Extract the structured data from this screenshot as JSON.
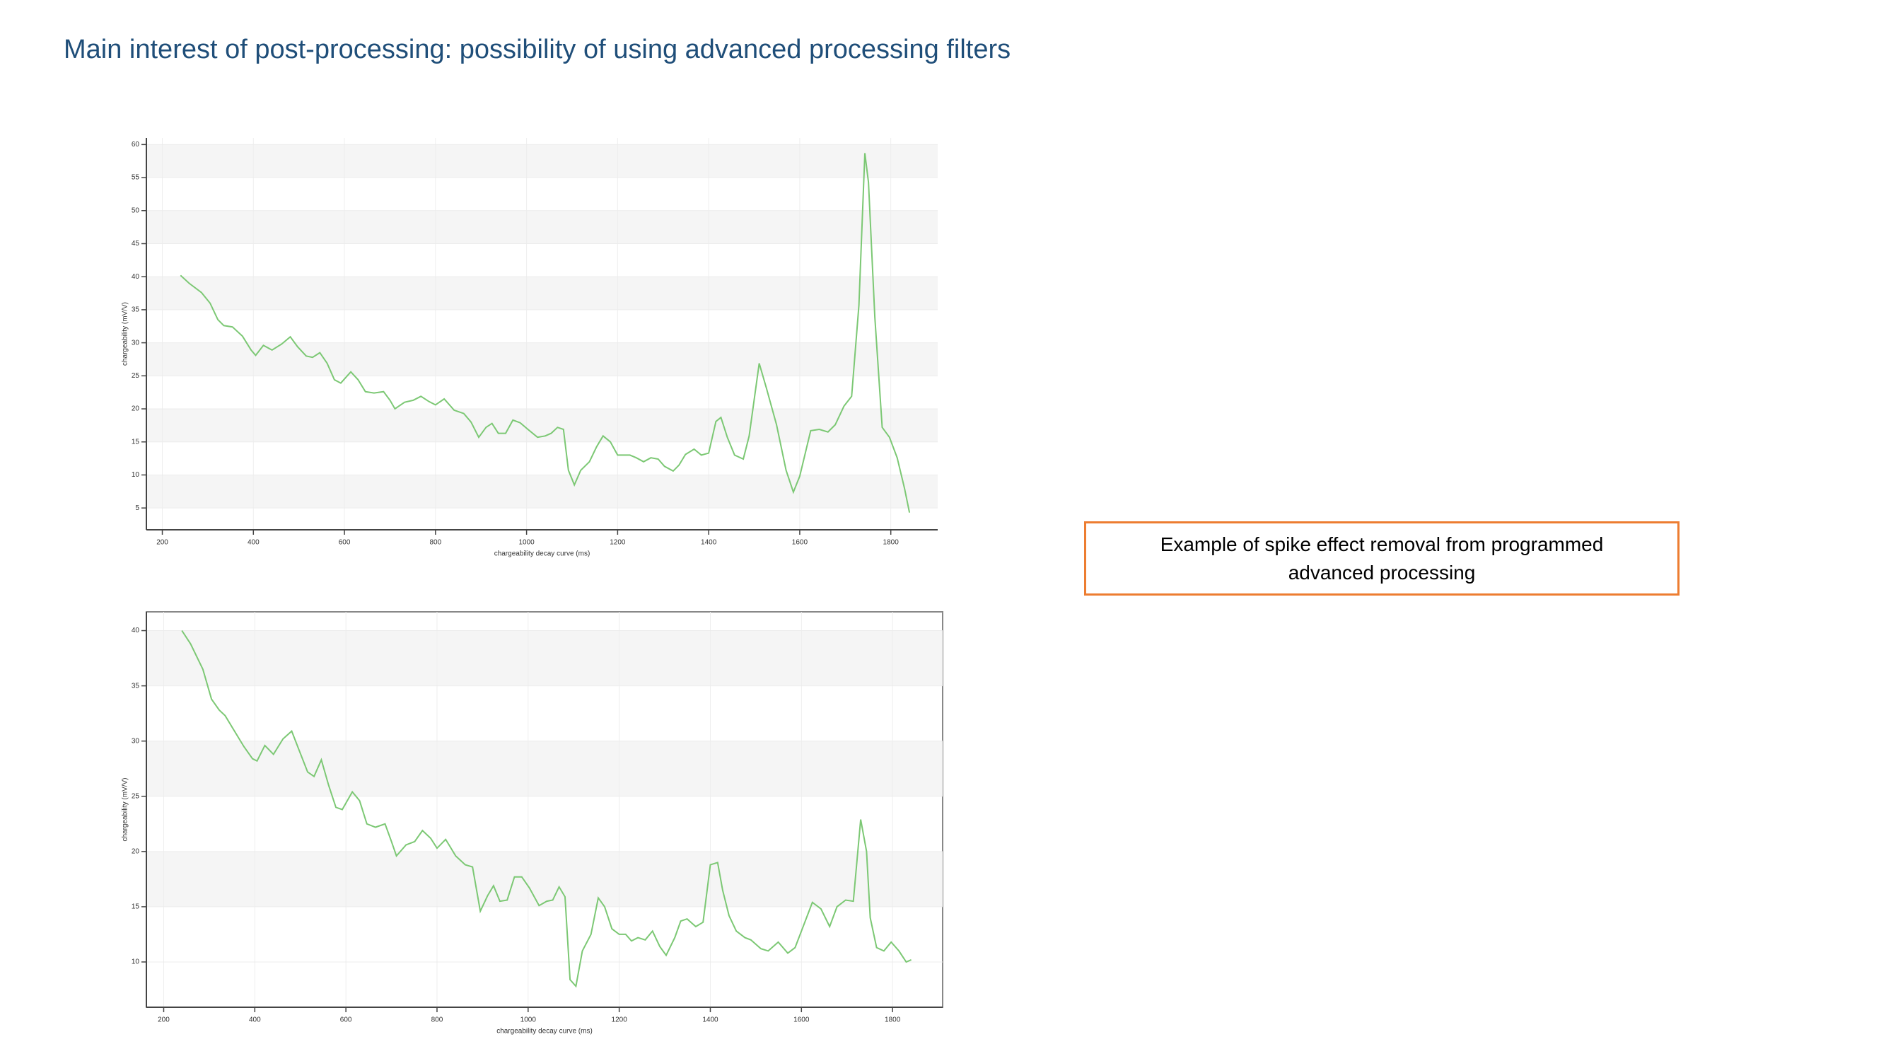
{
  "title": "Main interest of post-processing: possibility of using advanced processing filters",
  "annotation": "Example of spike effect removal from programmed advanced processing",
  "chart_data": [
    {
      "type": "line",
      "xlabel": "chargeability decay curve (ms)",
      "ylabel": "chargeability  (mV/V)",
      "xlim": [
        165,
        1903
      ],
      "ylim": [
        1.7,
        61
      ],
      "xticks": [
        200,
        400,
        600,
        800,
        1000,
        1200,
        1400,
        1600,
        1800
      ],
      "yticks": [
        5,
        10,
        15,
        20,
        25,
        30,
        35,
        40,
        45,
        50,
        55,
        60
      ],
      "grid": true,
      "x": [
        240,
        259,
        286,
        305,
        322,
        335,
        354,
        376,
        395,
        405,
        422,
        441,
        462,
        481,
        497,
        516,
        530,
        546,
        562,
        578,
        592,
        614,
        630,
        646,
        665,
        686,
        700,
        711,
        732,
        751,
        768,
        786,
        800,
        819,
        841,
        862,
        878,
        895,
        911,
        924,
        938,
        954,
        970,
        986,
        1003,
        1024,
        1041,
        1054,
        1068,
        1081,
        1092,
        1105,
        1119,
        1138,
        1154,
        1168,
        1184,
        1200,
        1214,
        1227,
        1241,
        1257,
        1273,
        1289,
        1303,
        1322,
        1335,
        1349,
        1368,
        1384,
        1400,
        1416,
        1427,
        1441,
        1457,
        1476,
        1489,
        1511,
        1527,
        1549,
        1570,
        1586,
        1600,
        1624,
        1643,
        1662,
        1678,
        1697,
        1714,
        1730,
        1743,
        1751,
        1765,
        1781,
        1797,
        1814,
        1830,
        1841
      ],
      "series": [
        {
          "color": "#7cc874",
          "values": [
            40.2,
            39,
            37.6,
            36,
            33.5,
            32.6,
            32.4,
            31,
            28.9,
            28.1,
            29.6,
            28.9,
            29.8,
            30.9,
            29.4,
            28,
            27.8,
            28.5,
            26.9,
            24.4,
            23.9,
            25.6,
            24.4,
            22.6,
            22.4,
            22.6,
            21.3,
            20,
            21,
            21.3,
            21.9,
            21.1,
            20.6,
            21.5,
            19.8,
            19.3,
            18,
            15.7,
            17.2,
            17.8,
            16.3,
            16.3,
            18.3,
            17.9,
            16.9,
            15.7,
            15.9,
            16.3,
            17.2,
            16.9,
            10.7,
            8.5,
            10.7,
            12,
            14.3,
            15.9,
            15,
            13,
            13,
            13,
            12.6,
            12,
            12.6,
            12.4,
            11.3,
            10.6,
            11.5,
            13.1,
            13.9,
            13,
            13.3,
            18.1,
            18.7,
            15.7,
            13,
            12.4,
            15.9,
            26.9,
            23.1,
            17.6,
            10.7,
            7.4,
            9.8,
            16.7,
            16.9,
            16.5,
            17.6,
            20.4,
            21.9,
            35.7,
            58.7,
            54.3,
            33.9,
            17.2,
            15.7,
            12.6,
            8,
            4.3
          ]
        }
      ]
    },
    {
      "type": "line",
      "xlabel": "chargeability decay curve (ms)",
      "ylabel": "chargeability  (mV/V)",
      "xlim": [
        162,
        1910
      ],
      "ylim": [
        5.9,
        41.7
      ],
      "xticks": [
        200,
        400,
        600,
        800,
        1000,
        1200,
        1400,
        1600,
        1800
      ],
      "yticks": [
        10,
        15,
        20,
        25,
        30,
        35,
        40
      ],
      "grid": true,
      "x": [
        240,
        259,
        286,
        305,
        322,
        335,
        354,
        376,
        395,
        405,
        422,
        441,
        462,
        481,
        497,
        516,
        530,
        546,
        562,
        578,
        592,
        614,
        630,
        646,
        665,
        686,
        700,
        711,
        732,
        751,
        768,
        786,
        800,
        819,
        841,
        862,
        878,
        895,
        911,
        924,
        938,
        954,
        970,
        986,
        1003,
        1024,
        1041,
        1054,
        1068,
        1081,
        1092,
        1105,
        1119,
        1138,
        1154,
        1168,
        1184,
        1200,
        1214,
        1227,
        1241,
        1257,
        1273,
        1289,
        1303,
        1322,
        1335,
        1349,
        1368,
        1384,
        1400,
        1416,
        1427,
        1441,
        1457,
        1476,
        1489,
        1511,
        1527,
        1549,
        1570,
        1586,
        1600,
        1624,
        1643,
        1662,
        1678,
        1697,
        1714,
        1730,
        1743,
        1751,
        1765,
        1781,
        1797,
        1814,
        1830,
        1841
      ],
      "series": [
        {
          "color": "#7cc874",
          "values": [
            40,
            38.8,
            36.5,
            33.8,
            32.8,
            32.3,
            31,
            29.5,
            28.4,
            28.2,
            29.6,
            28.8,
            30.2,
            30.9,
            29.2,
            27.2,
            26.8,
            28.3,
            26,
            24,
            23.8,
            25.4,
            24.6,
            22.5,
            22.2,
            22.5,
            20.9,
            19.6,
            20.6,
            20.9,
            21.9,
            21.2,
            20.3,
            21.1,
            19.6,
            18.8,
            18.6,
            14.6,
            16,
            16.9,
            15.5,
            15.6,
            17.7,
            17.7,
            16.7,
            15.1,
            15.5,
            15.6,
            16.8,
            15.9,
            8.4,
            7.8,
            11,
            12.5,
            15.8,
            15,
            13,
            12.5,
            12.5,
            11.9,
            12.2,
            12,
            12.8,
            11.4,
            10.6,
            12.2,
            13.7,
            13.9,
            13.2,
            13.6,
            18.8,
            19,
            16.5,
            14.2,
            12.8,
            12.2,
            12,
            11.2,
            11,
            11.8,
            10.8,
            11.3,
            12.8,
            15.4,
            14.8,
            13.2,
            15,
            15.6,
            15.5,
            22.9,
            20,
            14,
            11.3,
            11,
            11.8,
            11,
            10,
            10.2
          ]
        }
      ]
    }
  ]
}
